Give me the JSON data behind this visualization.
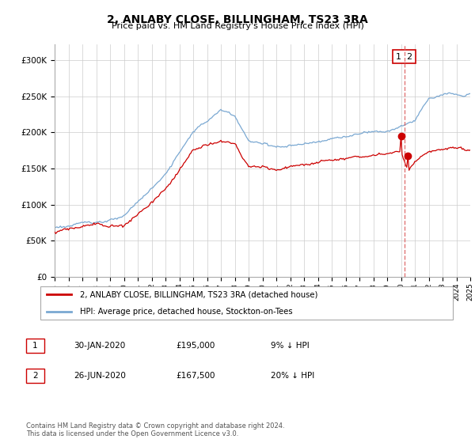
{
  "title": "2, ANLABY CLOSE, BILLINGHAM, TS23 3RA",
  "subtitle": "Price paid vs. HM Land Registry's House Price Index (HPI)",
  "legend_line1": "2, ANLABY CLOSE, BILLINGHAM, TS23 3RA (detached house)",
  "legend_line2": "HPI: Average price, detached house, Stockton-on-Tees",
  "footnote": "Contains HM Land Registry data © Crown copyright and database right 2024.\nThis data is licensed under the Open Government Licence v3.0.",
  "sale1_price": 195000,
  "sale2_price": 167500,
  "hpi_color": "#7aa8d2",
  "property_color": "#cc0000",
  "sale_color": "#cc0000",
  "dashed_line_color": "#dd6666",
  "ylim": [
    0,
    320000
  ],
  "yticks": [
    0,
    50000,
    100000,
    150000,
    200000,
    250000,
    300000
  ],
  "background_color": "#ffffff",
  "grid_color": "#cccccc",
  "row1_num": "1",
  "row1_date": "30-JAN-2020",
  "row1_price": "£195,000",
  "row1_hpi": "9% ↓ HPI",
  "row2_num": "2",
  "row2_date": "26-JUN-2020",
  "row2_price": "£167,500",
  "row2_hpi": "20% ↓ HPI"
}
